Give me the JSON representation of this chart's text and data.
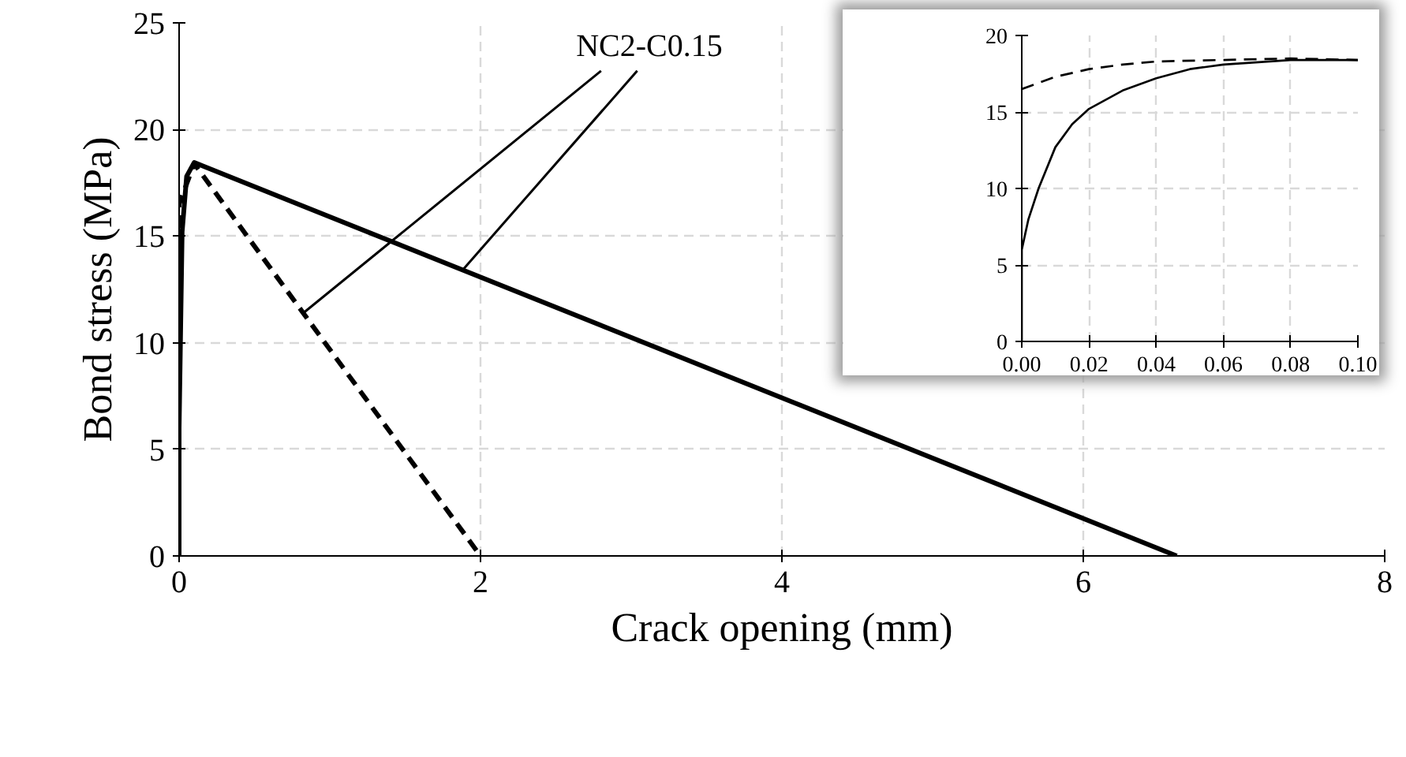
{
  "chart_data": [
    {
      "type": "line",
      "xlabel": "Crack opening (mm)",
      "ylabel": "Bond stress (MPa)",
      "series": [
        {
          "color": "#000000",
          "line_style": "solid",
          "x": [
            0,
            0,
            0.02,
            0.05,
            0.1,
            6.62
          ],
          "values": [
            0,
            6,
            15.2,
            17.8,
            18.45,
            0
          ]
        },
        {
          "color": "#000000",
          "line_style": "dashed",
          "x": [
            0,
            0,
            0.1,
            2.0
          ],
          "values": [
            0,
            16.5,
            18.4,
            0
          ]
        }
      ],
      "annotations": [
        {
          "text": "NC2-C0.15",
          "x": 1.88,
          "y": 13.4
        }
      ],
      "xlim": [
        0,
        8
      ],
      "xticks": [
        0,
        2,
        4,
        6,
        8
      ],
      "ylim": [
        0,
        25
      ],
      "yticks": [
        0,
        5,
        10,
        15,
        20,
        25
      ],
      "grid": true
    },
    {
      "type": "line",
      "series": [
        {
          "color": "#000000",
          "line_style": "solid",
          "x": [
            0,
            0,
            0.002,
            0.005,
            0.01,
            0.015,
            0.02,
            0.03,
            0.04,
            0.05,
            0.06,
            0.08,
            0.1
          ],
          "values": [
            0,
            6,
            8,
            10,
            12.7,
            14.2,
            15.2,
            16.4,
            17.2,
            17.8,
            18.1,
            18.4,
            18.4
          ]
        },
        {
          "color": "#000000",
          "line_style": "dashed",
          "x": [
            0,
            0.01,
            0.02,
            0.03,
            0.04,
            0.06,
            0.08,
            0.1
          ],
          "values": [
            16.5,
            17.3,
            17.8,
            18.1,
            18.3,
            18.4,
            18.5,
            18.4
          ]
        }
      ],
      "xlim": [
        0,
        0.1
      ],
      "xticks": [
        {
          "value": 0,
          "label": "0.00"
        },
        {
          "value": 0.02,
          "label": "0.02"
        },
        {
          "value": 0.04,
          "label": "0.04"
        },
        {
          "value": 0.06,
          "label": "0.06"
        },
        {
          "value": 0.08,
          "label": "0.08"
        },
        {
          "value": 0.1,
          "label": "0.10"
        }
      ],
      "ylim": [
        0,
        20
      ],
      "yticks": [
        0,
        5,
        10,
        15,
        20
      ],
      "grid": true
    }
  ]
}
